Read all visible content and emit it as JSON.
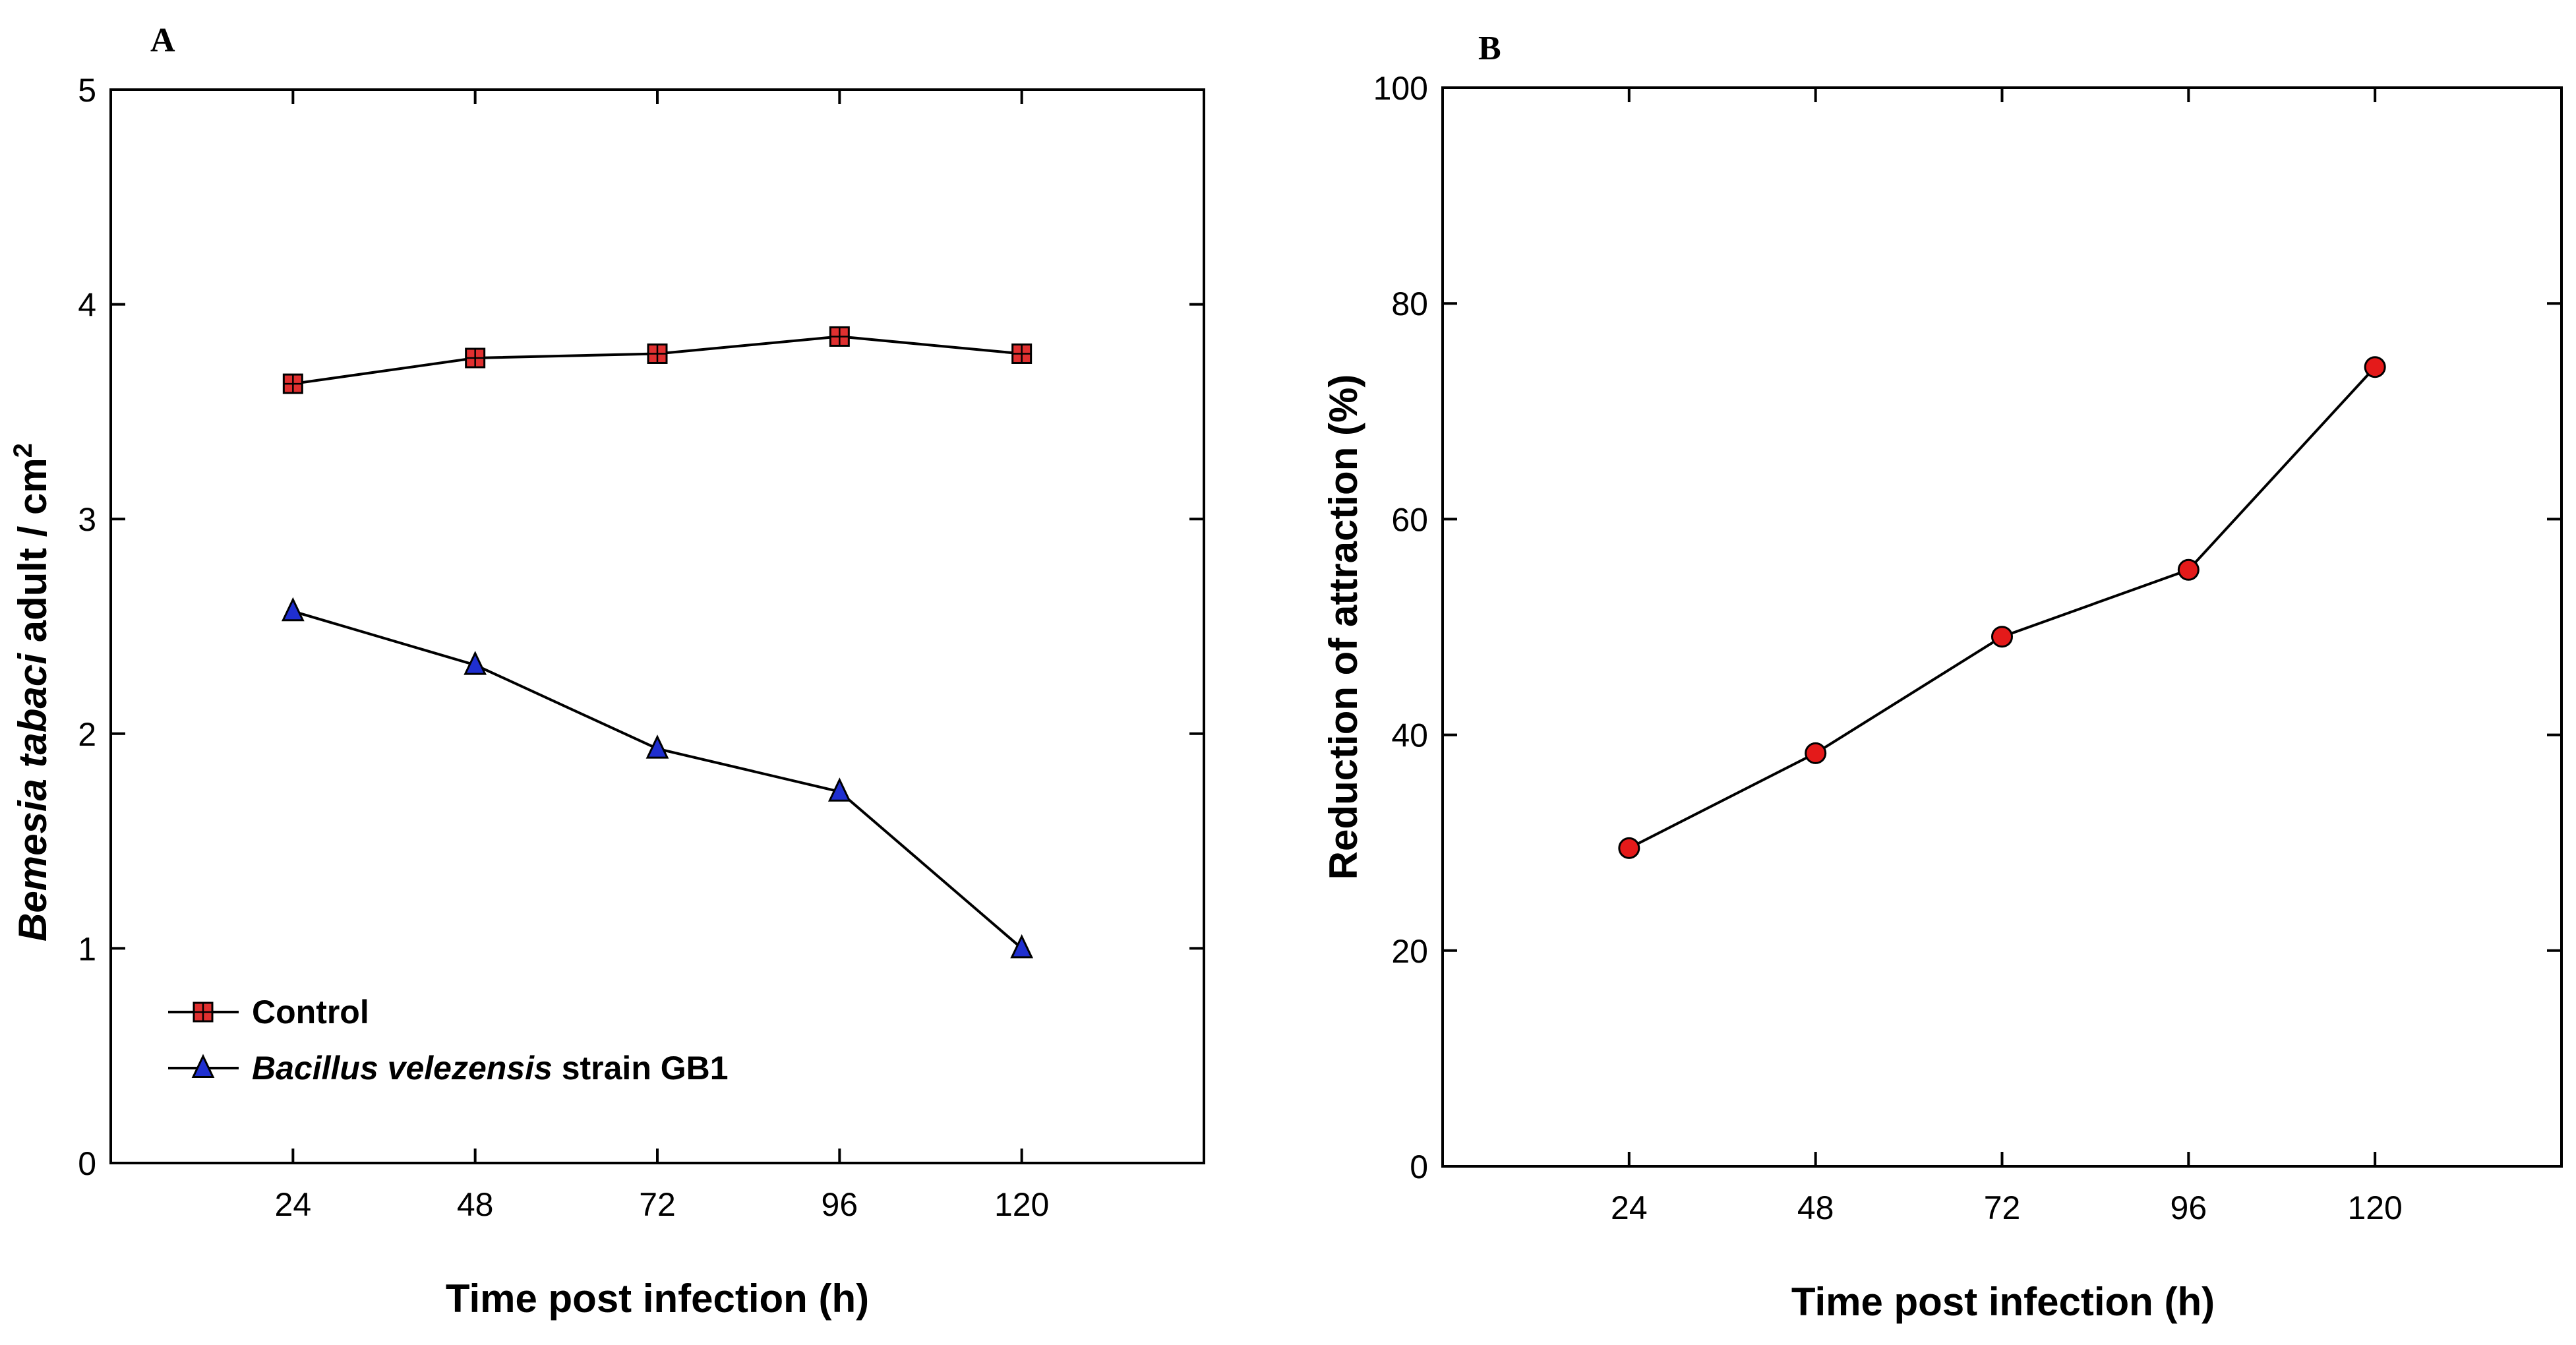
{
  "chart_data": [
    {
      "panel": "A",
      "type": "line",
      "xlabel": "Time post infection (h)",
      "ylabel_parts": [
        "Bemesia tabaci",
        " adult / cm",
        "2"
      ],
      "categories": [
        24,
        48,
        72,
        96,
        120
      ],
      "xlim": [
        0,
        144
      ],
      "ylim": [
        0,
        5
      ],
      "yticks": [
        0,
        1,
        2,
        3,
        4,
        5
      ],
      "legend_position": "bottom-left",
      "series": [
        {
          "name": "Control",
          "legend_parts": [
            "Control"
          ],
          "marker": "square",
          "color": "#e03030",
          "values": [
            3.63,
            3.75,
            3.77,
            3.85,
            3.77
          ]
        },
        {
          "name": "Bacillus velezensis strain GB1",
          "legend_parts": [
            "Bacillus velezensis",
            " strain GB1"
          ],
          "marker": "triangle",
          "color": "#1f2fd0",
          "values": [
            2.57,
            2.32,
            1.93,
            1.73,
            1.0
          ]
        }
      ]
    },
    {
      "panel": "B",
      "type": "line",
      "xlabel": "Time post infection (h)",
      "ylabel": "Reduction of attraction (%)",
      "categories": [
        24,
        48,
        72,
        96,
        120
      ],
      "xlim": [
        0,
        144
      ],
      "ylim": [
        0,
        100
      ],
      "yticks": [
        0,
        20,
        40,
        60,
        80,
        100
      ],
      "series": [
        {
          "name": "Reduction of attraction",
          "marker": "circle",
          "color": "#e41a1a",
          "values": [
            29.5,
            38.3,
            49.1,
            55.3,
            74.1
          ]
        }
      ]
    }
  ]
}
